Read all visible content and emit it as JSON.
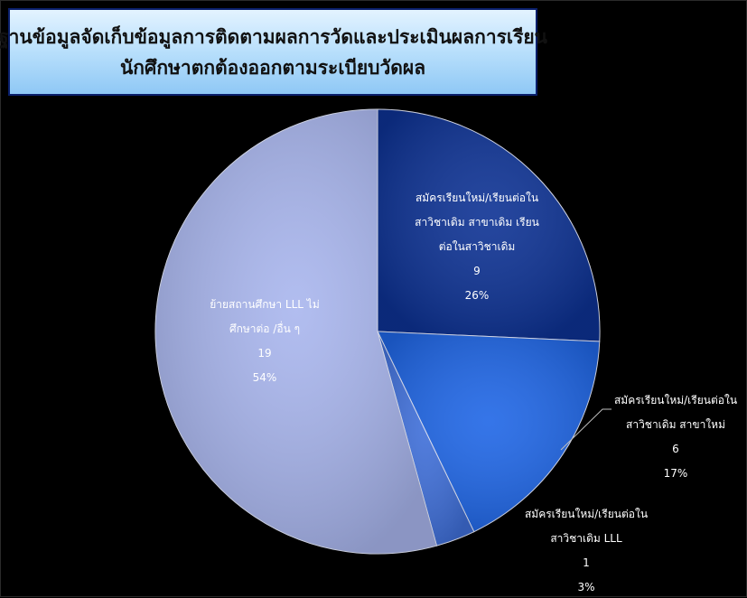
{
  "chart_data": {
    "type": "pie",
    "title_lines": [
      "ฐานข้อมูลจัดเก็บข้อมูลการติดตามผลการวัดและประเมินผลการเรียน",
      "นักศึกษาตกต้องออกตามระเบียบวัดผล"
    ],
    "slices": [
      {
        "label_lines": [
          "สมัครเรียนใหม่/เรียนต่อใน",
          "สาวิชาเดิม สาขาเดิม เรียน",
          "ต่อในสาวิชาเดิม"
        ],
        "value": 9,
        "value_label": "9",
        "percent_label": "26%",
        "color": "#0d3294"
      },
      {
        "label_lines": [
          "สมัครเรียนใหม่/เรียนต่อใน",
          "สาวิชาเดิม สาขาใหม่"
        ],
        "value": 6,
        "value_label": "6",
        "percent_label": "17%",
        "color": "#1f66e6"
      },
      {
        "label_lines": [
          "สมัครเรียนใหม่/เรียนต่อใน",
          "สาวิชาเดิม LLL"
        ],
        "value": 1,
        "value_label": "1",
        "percent_label": "3%",
        "color": "#3f6fd9"
      },
      {
        "label_lines": [
          "ย้ายสถานศึกษา LLL ไม่",
          "ศึกษาต่อ /อื่น ๆ"
        ],
        "value": 19,
        "value_label": "19",
        "percent_label": "54%",
        "color": "#a9b6ee"
      }
    ]
  }
}
